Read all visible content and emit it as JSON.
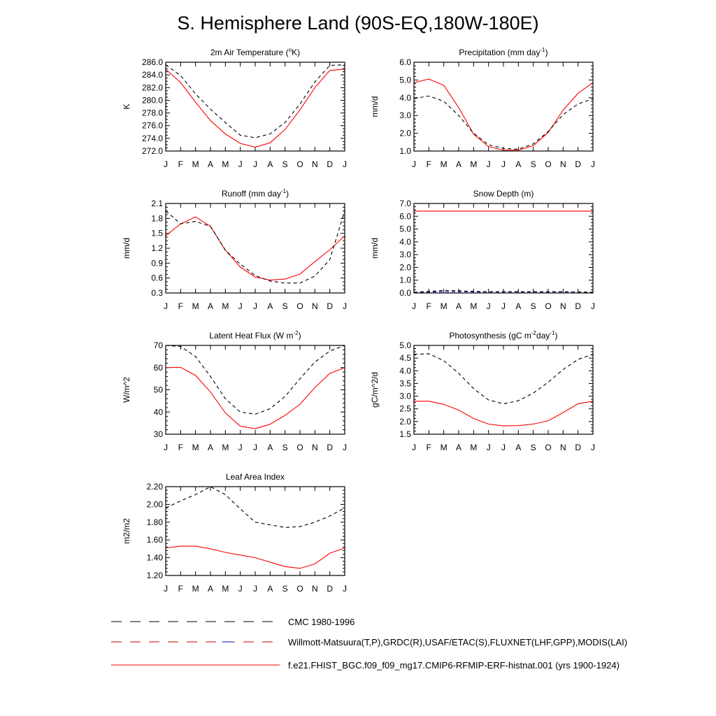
{
  "title": "S. Hemisphere Land (90S-EQ,180W-180E)",
  "months": [
    "J",
    "F",
    "M",
    "A",
    "M",
    "J",
    "J",
    "A",
    "S",
    "O",
    "N",
    "D",
    "J"
  ],
  "legend": {
    "items": [
      {
        "label": "CMC 1980-1996",
        "style": "dashed",
        "color": "#000000"
      },
      {
        "label": "Willmott-Matsuura(T,P),GRDC(R),USAF/ETAC(S),FLUXNET(LHF,GPP),MODIS(LAI)",
        "style": "dashed",
        "color": "#cc0000"
      },
      {
        "label": "f.e21.FHIST_BGC.f09_f09_mg17.CMIP6-RFMIP-ERF-histnat.001 (yrs 1900-1924)",
        "style": "solid",
        "color": "#ff0000"
      }
    ]
  },
  "colors": {
    "model": "#ff0000",
    "obs": "#000000",
    "obs_blue": "#0000cc"
  },
  "chart_data": [
    {
      "id": "temp",
      "type": "line",
      "title": "2m Air Temperature (",
      "title_sup": "o",
      "title_end": "K)",
      "ylabel": "K",
      "ylim": [
        272.0,
        286.0
      ],
      "yticks": [
        "272.0",
        "274.0",
        "276.0",
        "278.0",
        "280.0",
        "282.0",
        "284.0",
        "286.0"
      ],
      "series": [
        {
          "values": [
            284.9,
            282.8,
            279.7,
            276.8,
            274.7,
            273.2,
            272.6,
            273.3,
            275.4,
            278.5,
            282.0,
            284.7,
            284.9
          ],
          "style": "solid",
          "color": "#ff0000"
        },
        {
          "values": [
            285.6,
            283.9,
            281.0,
            278.6,
            276.5,
            274.5,
            274.1,
            274.7,
            276.5,
            279.4,
            282.9,
            285.5,
            285.6
          ],
          "style": "dashed",
          "color": "#000000"
        }
      ]
    },
    {
      "id": "precip",
      "type": "line",
      "title": "Precipitation (mm day",
      "title_sup": "-1",
      "title_end": ")",
      "ylabel": "mm/d",
      "ylim": [
        1.0,
        6.0
      ],
      "yticks": [
        "1.0",
        "2.0",
        "3.0",
        "4.0",
        "5.0",
        "6.0"
      ],
      "series": [
        {
          "values": [
            4.85,
            5.05,
            4.7,
            3.45,
            1.95,
            1.25,
            1.05,
            1.05,
            1.3,
            2.05,
            3.3,
            4.25,
            4.85
          ],
          "style": "solid",
          "color": "#ff0000"
        },
        {
          "values": [
            3.95,
            4.1,
            3.8,
            3.0,
            2.0,
            1.35,
            1.15,
            1.1,
            1.4,
            2.1,
            3.05,
            3.65,
            3.95
          ],
          "style": "dashed",
          "color": "#000000"
        }
      ]
    },
    {
      "id": "runoff",
      "type": "line",
      "title": "Runoff (mm day",
      "title_sup": "-1",
      "title_end": ")",
      "ylabel": "mm/d",
      "ylim": [
        0.3,
        2.1
      ],
      "yticks": [
        "0.3",
        "0.6",
        "0.9",
        "1.2",
        "1.5",
        "1.8",
        "2.1"
      ],
      "series": [
        {
          "values": [
            1.45,
            1.69,
            1.83,
            1.64,
            1.16,
            0.82,
            0.62,
            0.56,
            0.58,
            0.68,
            0.93,
            1.17,
            1.45
          ],
          "style": "solid",
          "color": "#ff0000"
        },
        {
          "values": [
            1.95,
            1.69,
            1.74,
            1.64,
            1.16,
            0.88,
            0.65,
            0.54,
            0.5,
            0.5,
            0.64,
            0.97,
            1.95
          ],
          "style": "dashed",
          "color": "#000000"
        }
      ]
    },
    {
      "id": "snow",
      "type": "line",
      "title": "Snow Depth (m)",
      "title_sup": "",
      "title_end": "",
      "ylabel": "mm/d",
      "ylim": [
        0.0,
        7.0
      ],
      "yticks": [
        "0.0",
        "1.0",
        "2.0",
        "3.0",
        "4.0",
        "5.0",
        "6.0",
        "7.0"
      ],
      "series": [
        {
          "values": [
            6.4,
            6.4,
            6.4,
            6.4,
            6.4,
            6.4,
            6.4,
            6.4,
            6.4,
            6.4,
            6.4,
            6.4,
            6.4
          ],
          "style": "solid",
          "color": "#ff0000"
        },
        {
          "values": [
            0.05,
            0.07,
            0.1,
            0.1,
            0.08,
            0.08,
            0.08,
            0.08,
            0.08,
            0.08,
            0.08,
            0.08,
            0.05
          ],
          "style": "dashed",
          "color": "#0000cc"
        },
        {
          "values": [
            0.06,
            0.12,
            0.2,
            0.18,
            0.12,
            0.1,
            0.1,
            0.1,
            0.1,
            0.1,
            0.1,
            0.08,
            0.06
          ],
          "style": "dashed",
          "color": "#000000"
        }
      ]
    },
    {
      "id": "lhf",
      "type": "line",
      "title": "Latent Heat Flux (W m",
      "title_sup": "-2",
      "title_end": ")",
      "ylabel": "W/m^2",
      "ylim": [
        30,
        70
      ],
      "yticks": [
        "30",
        "40",
        "50",
        "60",
        "70"
      ],
      "series": [
        {
          "values": [
            60.0,
            60.1,
            56.5,
            49.0,
            39.6,
            33.6,
            32.5,
            34.5,
            38.5,
            43.5,
            51.0,
            57.4,
            60.0
          ],
          "style": "solid",
          "color": "#ff0000"
        },
        {
          "values": [
            70.0,
            69.5,
            65.0,
            56.0,
            46.0,
            40.0,
            39.0,
            41.5,
            47.0,
            55.0,
            62.5,
            67.5,
            70.0
          ],
          "style": "dashed",
          "color": "#000000"
        }
      ]
    },
    {
      "id": "gpp",
      "type": "line",
      "title": "Photosynthesis (gC m",
      "title_sup": "-2",
      "title_end": "day",
      "title_sup2": "-1",
      "title_end2": ")",
      "ylabel": "gC/m^2/d",
      "ylim": [
        1.5,
        5.0
      ],
      "yticks": [
        "1.5",
        "2.0",
        "2.5",
        "3.0",
        "3.5",
        "4.0",
        "4.5",
        "5.0"
      ],
      "series": [
        {
          "values": [
            2.8,
            2.8,
            2.68,
            2.45,
            2.12,
            1.9,
            1.83,
            1.84,
            1.9,
            2.03,
            2.35,
            2.7,
            2.8
          ],
          "style": "solid",
          "color": "#ff0000"
        },
        {
          "values": [
            4.65,
            4.67,
            4.4,
            3.9,
            3.3,
            2.85,
            2.7,
            2.82,
            3.12,
            3.55,
            4.05,
            4.45,
            4.65
          ],
          "style": "dashed",
          "color": "#000000"
        }
      ]
    },
    {
      "id": "lai",
      "type": "line",
      "title": "Leaf Area Index",
      "title_sup": "",
      "title_end": "",
      "ylabel": "m2/m2",
      "ylim": [
        1.2,
        2.2
      ],
      "yticks": [
        "1.20",
        "1.40",
        "1.60",
        "1.80",
        "2.00",
        "2.20"
      ],
      "series": [
        {
          "values": [
            1.51,
            1.53,
            1.53,
            1.5,
            1.46,
            1.43,
            1.4,
            1.35,
            1.3,
            1.28,
            1.33,
            1.45,
            1.51
          ],
          "style": "solid",
          "color": "#ff0000"
        },
        {
          "values": [
            1.96,
            2.04,
            2.11,
            2.2,
            2.11,
            1.95,
            1.8,
            1.77,
            1.74,
            1.75,
            1.8,
            1.87,
            1.96
          ],
          "style": "dashed",
          "color": "#000000"
        }
      ]
    }
  ]
}
